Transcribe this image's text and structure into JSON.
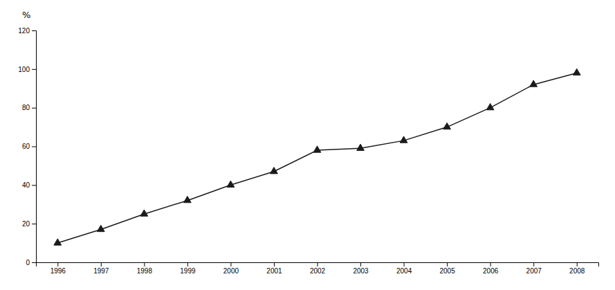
{
  "chart_data": {
    "type": "line",
    "ylabel": "%",
    "x": [
      1996,
      1997,
      1998,
      1999,
      2000,
      2001,
      2002,
      2003,
      2004,
      2005,
      2006,
      2007,
      2008
    ],
    "values": [
      10,
      17,
      25,
      32,
      40,
      47,
      58,
      59,
      63,
      70,
      80,
      92,
      98
    ],
    "color": "#1a1a1a",
    "marker": "triangle",
    "xlim": [
      1995.5,
      2008.5
    ],
    "xticks": [
      1996,
      1997,
      1998,
      1999,
      2000,
      2001,
      2002,
      2003,
      2004,
      2005,
      2006,
      2007,
      2008
    ],
    "ylim": [
      0,
      120
    ],
    "yticks": [
      0,
      20,
      40,
      60,
      80,
      100,
      120
    ],
    "grid": false
  }
}
